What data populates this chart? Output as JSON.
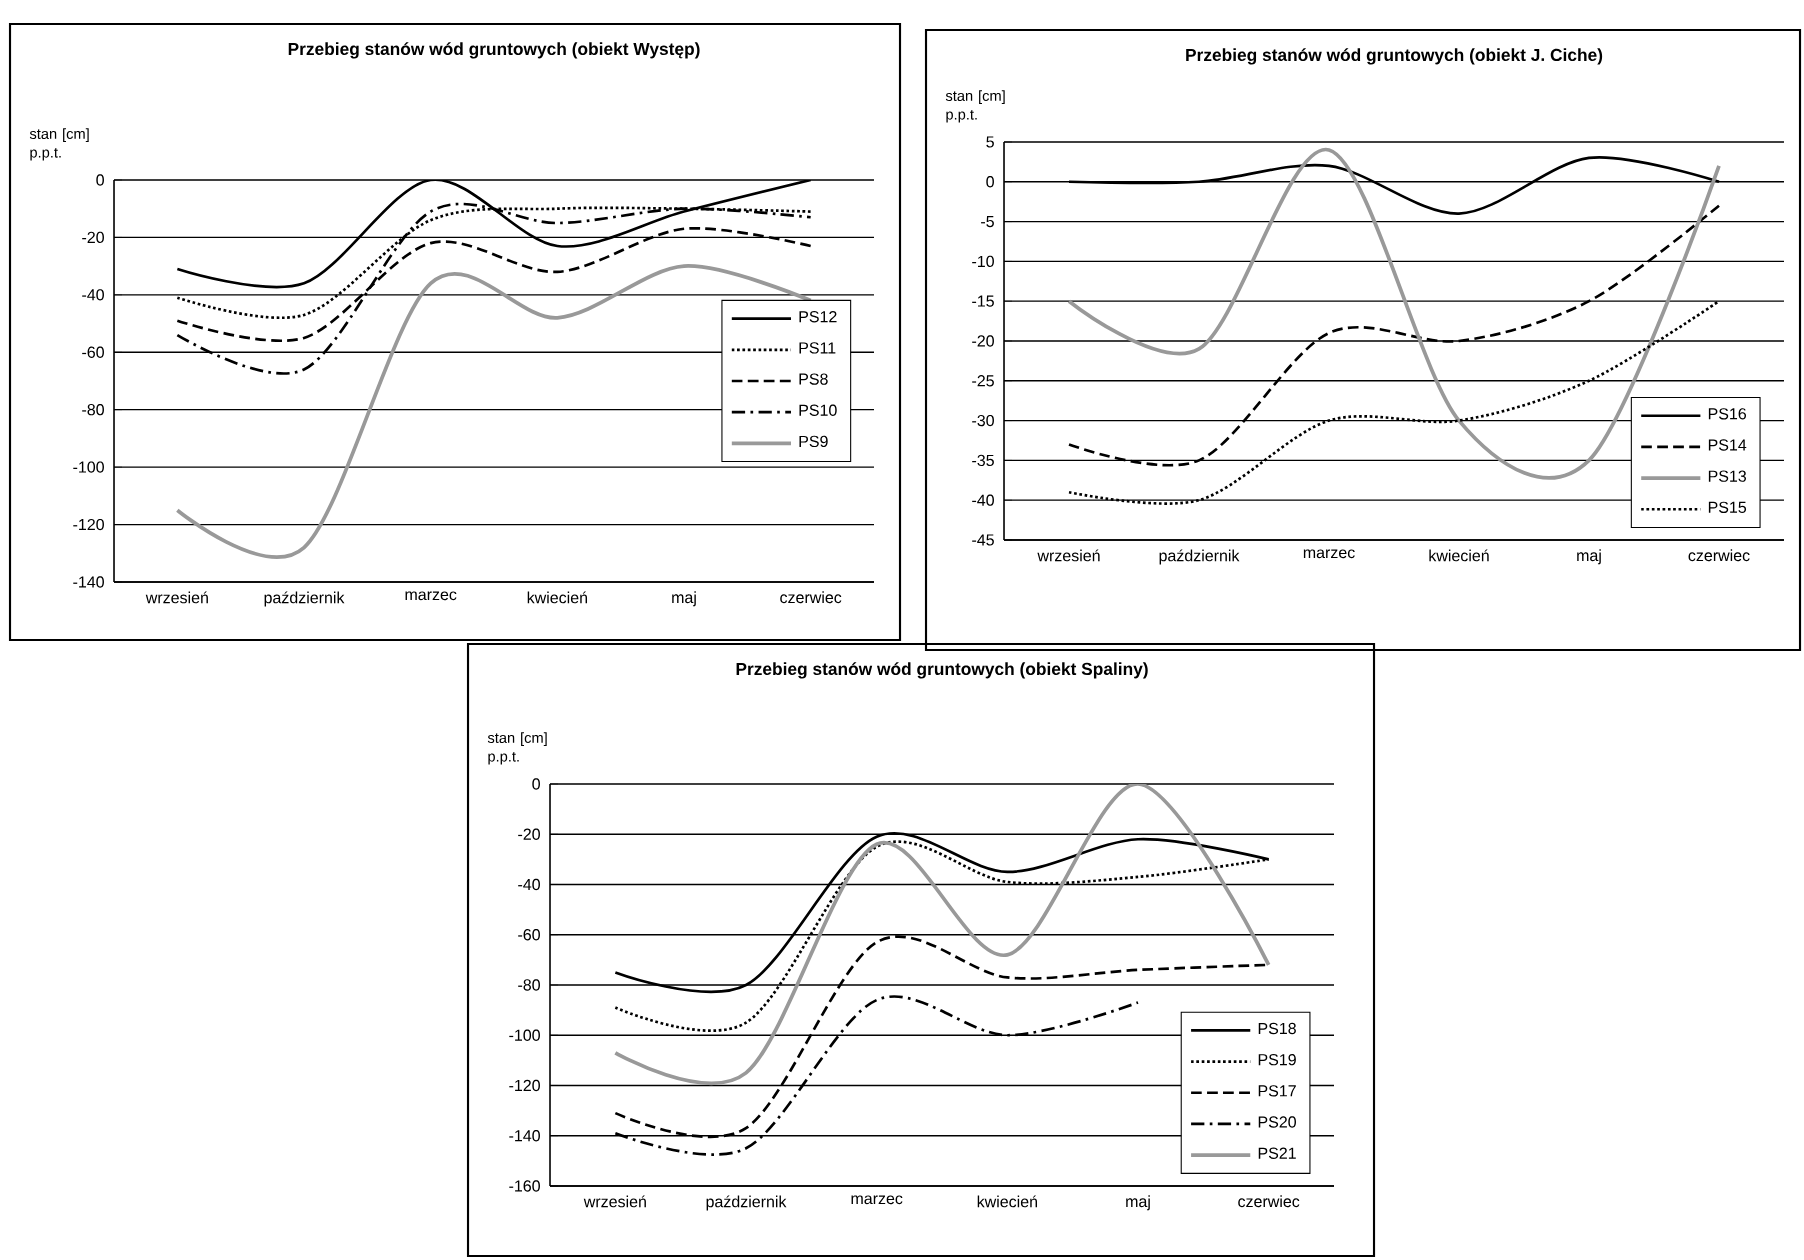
{
  "chart_data": [
    {
      "type": "line",
      "title": "Przebieg stanów wód gruntowych (obiekt Występ)",
      "ylabel": "stan [cm] p.p.t.",
      "categories": [
        "wrzesień",
        "październik",
        "marzec",
        "kwiecień",
        "maj",
        "czerwiec"
      ],
      "ylim": [
        -140,
        0
      ],
      "yticks": [
        -140,
        -120,
        -100,
        -80,
        -60,
        -40,
        -20,
        0
      ],
      "grid": "y",
      "legend": "right",
      "marker": "none",
      "series": [
        {
          "name": "PS12",
          "color": "#000000",
          "line_style": "solid",
          "values": [
            -31,
            -36,
            0,
            -23,
            -11,
            0
          ]
        },
        {
          "name": "PS11",
          "color": "#000000",
          "line_style": "dotted",
          "values": [
            -41,
            -47,
            -14,
            -10,
            -10,
            -11
          ]
        },
        {
          "name": "PS8",
          "color": "#000000",
          "line_style": "dashed",
          "values": [
            -49,
            -55,
            -22,
            -32,
            -17,
            -23
          ]
        },
        {
          "name": "PS10",
          "color": "#000000",
          "line_style": "dashdot",
          "values": [
            -54,
            -66,
            -11,
            -15,
            -10,
            -13
          ]
        },
        {
          "name": "PS9",
          "color": "#999999",
          "line_style": "solid",
          "values": [
            -115,
            -128,
            -36,
            -48,
            -30,
            -42
          ]
        }
      ]
    },
    {
      "type": "line",
      "title": "Przebieg stanów wód gruntowych (obiekt J. Ciche)",
      "ylabel": "stan [cm] p.p.t.",
      "categories": [
        "wrzesień",
        "październik",
        "marzec",
        "kwiecień",
        "maj",
        "czerwiec"
      ],
      "ylim": [
        -45,
        5
      ],
      "yticks": [
        -45,
        -40,
        -35,
        -30,
        -25,
        -20,
        -15,
        -10,
        -5,
        0,
        5
      ],
      "grid": "y",
      "legend": "bottom right",
      "marker": "none",
      "series": [
        {
          "name": "PS16",
          "color": "#000000",
          "line_style": "solid",
          "values": [
            0,
            0,
            2,
            -4,
            3,
            0
          ]
        },
        {
          "name": "PS14",
          "color": "#000000",
          "line_style": "dashed",
          "values": [
            -33,
            -35,
            -19,
            -20,
            -15,
            -3
          ]
        },
        {
          "name": "PS13",
          "color": "#999999",
          "line_style": "solid",
          "values": [
            -15,
            -21,
            4,
            -30,
            -35,
            2
          ]
        },
        {
          "name": "PS15",
          "color": "#000000",
          "line_style": "dotted",
          "values": [
            -39,
            -40,
            -30,
            -30,
            -25,
            -15
          ]
        }
      ]
    },
    {
      "type": "line",
      "title": "Przebieg stanów wód gruntowych (obiekt Spaliny)",
      "ylabel": "stan [cm] p.p.t.",
      "categories": [
        "wrzesień",
        "październik",
        "marzec",
        "kwiecień",
        "maj",
        "czerwiec"
      ],
      "ylim": [
        -160,
        0
      ],
      "yticks": [
        -160,
        -140,
        -120,
        -100,
        -80,
        -60,
        -40,
        -20,
        0
      ],
      "grid": "y",
      "legend": "bottom right",
      "marker": "none",
      "series": [
        {
          "name": "PS18",
          "color": "#000000",
          "line_style": "solid",
          "values": [
            -75,
            -80,
            -21,
            -35,
            -22,
            -30
          ]
        },
        {
          "name": "PS19",
          "color": "#000000",
          "line_style": "dotted",
          "values": [
            -89,
            -95,
            -25,
            -39,
            -37,
            -30
          ]
        },
        {
          "name": "PS17",
          "color": "#000000",
          "line_style": "dashed",
          "values": [
            -131,
            -137,
            -63,
            -77,
            -74,
            -72
          ]
        },
        {
          "name": "PS20",
          "color": "#000000",
          "line_style": "dashdot",
          "values": [
            -139,
            -145,
            -86,
            -100,
            -87,
            null
          ]
        },
        {
          "name": "PS21",
          "color": "#999999",
          "line_style": "solid",
          "values": [
            -107,
            -115,
            -24,
            -68,
            0,
            -72
          ]
        }
      ]
    }
  ]
}
